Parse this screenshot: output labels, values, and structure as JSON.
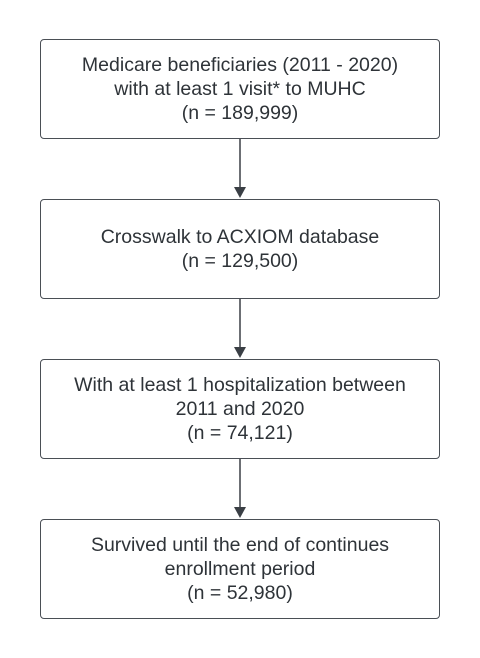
{
  "flowchart": {
    "boxes": [
      {
        "lines": [
          "Medicare beneficiaries (2011 - 2020)",
          "with at least 1 visit* to MUHC",
          "(n = 189,999)"
        ]
      },
      {
        "lines": [
          "Crosswalk to ACXIOM database",
          "(n = 129,500)"
        ]
      },
      {
        "lines": [
          "With at least 1 hospitalization between",
          "2011 and 2020",
          "(n = 74,121)"
        ]
      },
      {
        "lines": [
          "Survived until the end of continues",
          "enrollment period",
          "(n = 52,980)"
        ]
      }
    ],
    "colors": {
      "border": "#4a4f55",
      "text": "#2e3338",
      "arrow": "#3a3f45"
    }
  }
}
